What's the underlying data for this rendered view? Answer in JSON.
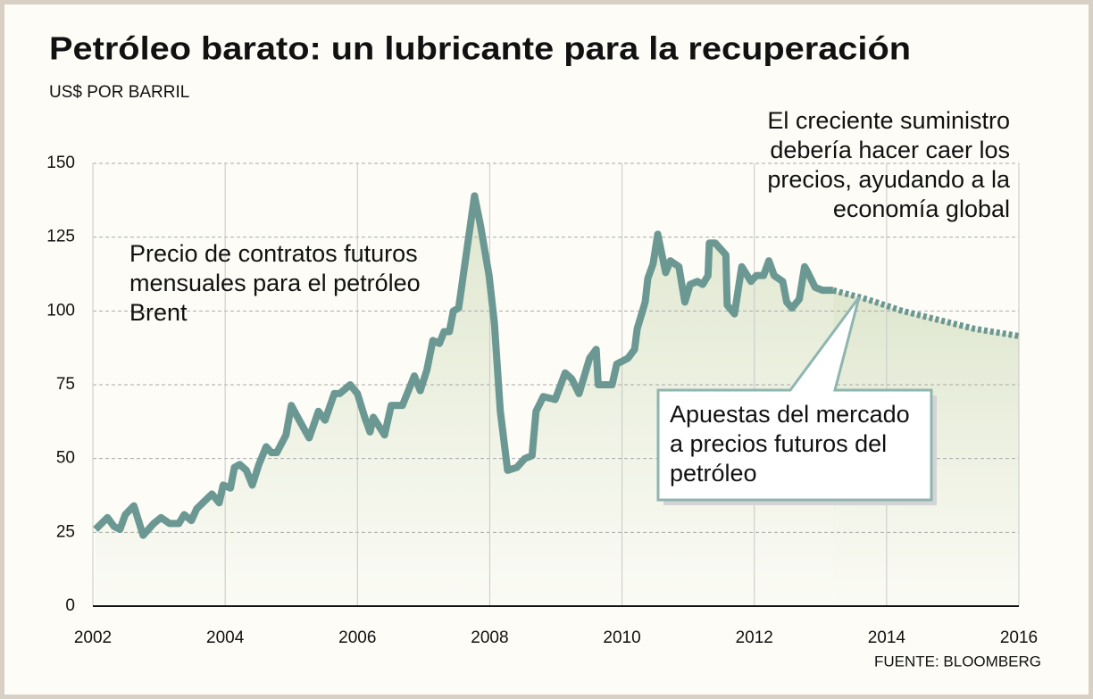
{
  "chart_data": {
    "type": "line",
    "title": "Petróleo barato: un lubricante para la recuperación",
    "subtitle": "US$ POR BARRIL",
    "source": "FUENTE: BLOOMBERG",
    "annotations": [
      {
        "lines": [
          "Precio de contratos futuros",
          "mensuales para el petróleo",
          "Brent"
        ]
      },
      {
        "lines": [
          "El creciente suministro",
          "debería hacer caer los",
          "precios, ayudando a la",
          "economía global"
        ]
      },
      {
        "lines": [
          "Apuestas del mercado",
          "a precios futuros del",
          "petróleo"
        ]
      }
    ],
    "series": [
      {
        "color": "#6b9892",
        "style": "solid",
        "x": [
          2002.04,
          2002.22,
          2002.32,
          2002.41,
          2002.49,
          2002.62,
          2002.76,
          2002.92,
          2003.03,
          2003.16,
          2003.3,
          2003.38,
          2003.49,
          2003.57,
          2003.8,
          2003.91,
          2003.97,
          2004.08,
          2004.14,
          2004.22,
          2004.32,
          2004.41,
          2004.51,
          2004.62,
          2004.7,
          2004.78,
          2004.92,
          2005.0,
          2005.12,
          2005.27,
          2005.41,
          2005.51,
          2005.65,
          2005.73,
          2005.89,
          2006.0,
          2006.11,
          2006.19,
          2006.24,
          2006.41,
          2006.51,
          2006.68,
          2006.86,
          2006.95,
          2007.05,
          2007.14,
          2007.24,
          2007.31,
          2007.39,
          2007.45,
          2007.53,
          2007.77,
          2007.86,
          2007.99,
          2008.07,
          2008.16,
          2008.27,
          2008.41,
          2008.53,
          2008.64,
          2008.7,
          2008.81,
          2008.99,
          2009.14,
          2009.24,
          2009.35,
          2009.51,
          2009.61,
          2009.64,
          2009.76,
          2009.85,
          2009.92,
          2010.09,
          2010.19,
          2010.23,
          2010.35,
          2010.39,
          2010.47,
          2010.54,
          2010.66,
          2010.73,
          2010.86,
          2010.95,
          2011.03,
          2011.14,
          2011.22,
          2011.3,
          2011.32,
          2011.41,
          2011.57,
          2011.59,
          2011.7,
          2011.81,
          2011.95,
          2012.03,
          2012.14,
          2012.22,
          2012.3,
          2012.43,
          2012.49,
          2012.57,
          2012.68,
          2012.76,
          2012.81,
          2012.92,
          2013.03,
          2013.19
        ],
        "values": [
          26,
          30,
          27,
          26,
          31,
          34,
          24,
          28,
          30,
          28,
          28,
          31,
          29,
          33,
          38,
          35,
          41,
          40,
          47,
          48,
          46,
          41,
          48,
          54,
          52,
          52,
          58,
          68,
          63,
          57,
          66,
          63,
          72,
          72,
          75,
          72,
          64,
          59,
          64,
          58,
          68,
          68,
          78,
          73,
          80,
          90,
          89,
          93,
          93,
          100,
          101,
          139,
          129,
          112,
          96,
          66,
          46,
          47,
          50,
          51,
          66,
          71,
          70,
          79,
          77,
          72,
          84,
          87,
          75,
          75,
          75,
          82,
          84,
          87,
          94,
          103,
          111,
          116,
          126,
          113,
          117,
          115,
          103,
          109,
          110,
          109,
          112,
          123,
          123,
          119,
          102,
          99,
          115,
          110,
          112,
          112,
          117,
          112,
          110,
          103,
          101,
          104,
          115,
          113,
          108,
          107,
          107
        ]
      },
      {
        "color": "#6b9892",
        "style": "dotted",
        "x": [
          2013.19,
          2013.7,
          2014.24,
          2014.78,
          2015.32,
          2016
        ],
        "values": [
          107,
          104,
          100,
          97,
          94,
          91.5
        ]
      }
    ],
    "xlim": [
      2002,
      2016
    ],
    "xticks": [
      2002,
      2004,
      2006,
      2008,
      2010,
      2012,
      2014,
      2016
    ],
    "ylim": [
      0,
      150
    ],
    "yticks": [
      0,
      25,
      50,
      75,
      100,
      125,
      150
    ],
    "grid": true
  }
}
